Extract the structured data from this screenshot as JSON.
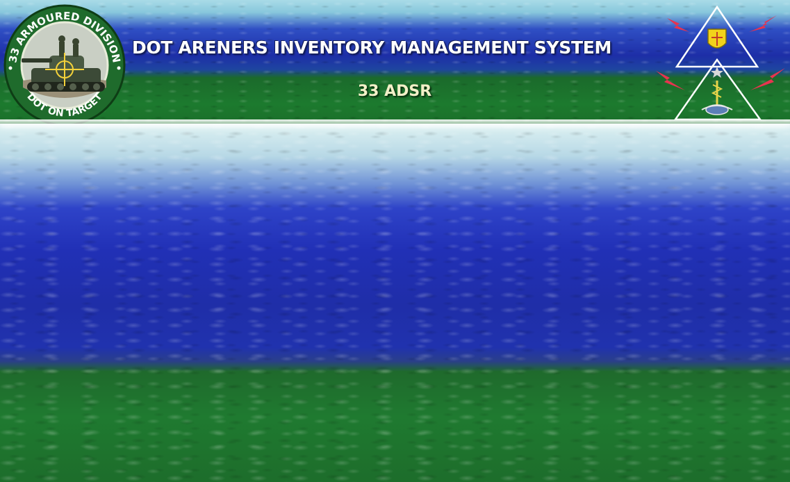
{
  "header": {
    "title": "DOT ARENERS INVENTORY MANAGEMENT SYSTEM",
    "subtitle": "33 ADSR"
  },
  "emblem": {
    "top_text": "33 ARMOURED DIVISION",
    "bottom_text": "DOT ON TARGET",
    "icon": "tank-emblem-icon"
  },
  "insignia": {
    "icon": "triangle-insignia-icon"
  },
  "colors": {
    "banner_blue": "#1d2ea7",
    "banner_green": "#1b6a2b",
    "title_text": "#ffffff",
    "subtitle_text": "#f3f0c8",
    "emblem_ring": "#1f6b2c",
    "lightning": "#e8334f"
  }
}
